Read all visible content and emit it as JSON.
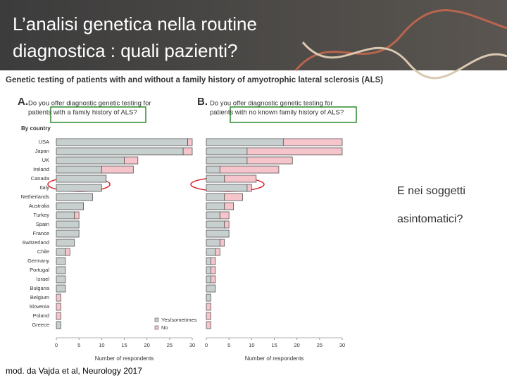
{
  "slide": {
    "title": [
      "L’analisi genetica nella routine",
      "diagnostica : quali pazienti?"
    ],
    "side_text": [
      "E nei soggetti",
      "asintomatici?"
    ],
    "source": "mod. da Vajda et al, Neurology 2017"
  },
  "figure_title": "Genetic testing of patients with and without a family history of amyotrophic lateral sclerosis (ALS)",
  "chart_data": [
    {
      "type": "barh",
      "stacked": true,
      "panel": "A.",
      "question": [
        "Do you offer diagnostic genetic testing for",
        "patients with a family history of ALS?"
      ],
      "category_header": "By country",
      "categories": [
        "USA",
        "Japan",
        "UK",
        "Ireland",
        "Canada",
        "Italy",
        "Netherlands",
        "Australia",
        "Turkey",
        "Spain",
        "France",
        "Switzerland",
        "Chile",
        "Germany",
        "Portugal",
        "Israel",
        "Bulgaria",
        "Belgium",
        "Slovenia",
        "Poland",
        "Greece"
      ],
      "series": [
        {
          "name": "Yes/sometimes",
          "color": "#c8cfcf",
          "values": [
            29,
            28,
            15,
            10,
            11,
            10,
            8,
            6,
            4,
            5,
            5,
            4,
            2,
            2,
            2,
            2,
            2,
            0,
            0,
            0,
            1
          ]
        },
        {
          "name": "No",
          "color": "#f6c4cb",
          "values": [
            1,
            2,
            3,
            7,
            0,
            0,
            0,
            0,
            1,
            0,
            0,
            0,
            1,
            0,
            0,
            0,
            0,
            1,
            1,
            1,
            0
          ]
        }
      ],
      "xlim": [
        0,
        30
      ],
      "xticks": [
        0,
        5,
        10,
        15,
        20,
        25,
        30
      ],
      "xlabel": "Number of respondents",
      "grid": false,
      "legend": "bottom-right"
    },
    {
      "type": "barh",
      "stacked": true,
      "panel": "B.",
      "question": [
        "Do you offer diagnostic genetic testing for",
        "patients with no known family history of ALS?"
      ],
      "series": [
        {
          "color": "#c8cfcf",
          "values": [
            17,
            9,
            9,
            3,
            4,
            9,
            4,
            4,
            3,
            4,
            5,
            3,
            2,
            1,
            1,
            1,
            2,
            1,
            0,
            0,
            0
          ]
        },
        {
          "color": "#f6c4cb",
          "values": [
            13,
            21,
            10,
            13,
            7,
            1,
            4,
            2,
            2,
            1,
            0,
            1,
            1,
            1,
            1,
            1,
            0,
            0,
            1,
            1,
            1
          ]
        }
      ],
      "xlim": [
        0,
        30
      ],
      "xticks": [
        0,
        5,
        10,
        15,
        20,
        25,
        30
      ],
      "xlabel": "Number of respondents",
      "grid": false
    }
  ]
}
